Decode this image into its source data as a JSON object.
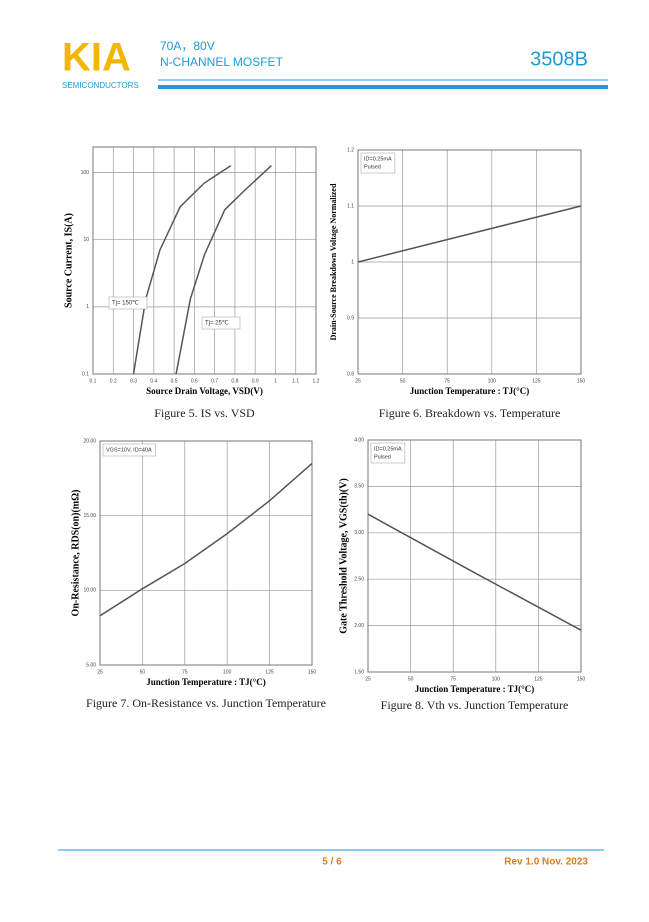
{
  "header": {
    "logo": "KIA",
    "company": "SEMICONDUCTORS",
    "rating": "70A，80V",
    "device_type": "N-CHANNEL MOSFET",
    "part": "3508B"
  },
  "footer": {
    "page": "5 / 6",
    "revision": "Rev 1.0   Nov. 2023"
  },
  "chart_data": [
    {
      "type": "line",
      "title": "Figure 5.    IS vs. VSD",
      "xlabel": "Source Drain Voltage, VSD(V)",
      "ylabel": "Source Current, IS(A)",
      "ylog": true,
      "grid": true,
      "xlim": [
        0.1,
        1.2
      ],
      "xticks": [
        0.1,
        0.2,
        0.3,
        0.4,
        0.5,
        0.6,
        0.7,
        0.8,
        0.9,
        1,
        1.1,
        1.2
      ],
      "ylim": [
        0.1,
        240
      ],
      "yticks": [
        0.1,
        1,
        10,
        100
      ],
      "series": [
        {
          "name": "Tj= 150℃",
          "color": "#555555",
          "x": [
            0.3,
            0.36,
            0.43,
            0.53,
            0.65,
            0.78
          ],
          "values": [
            0.1,
            1.3,
            7,
            31,
            70,
            127
          ]
        },
        {
          "name": "Tj= 25℃",
          "color": "#555555",
          "x": [
            0.51,
            0.58,
            0.65,
            0.75,
            0.85,
            0.98
          ],
          "values": [
            0.1,
            1.3,
            6,
            28,
            55,
            127
          ]
        }
      ]
    },
    {
      "type": "line",
      "title": "Figure 6. Breakdown vs. Temperature",
      "xlabel": "Junction Temperature : TJ(°C)",
      "ylabel": "Drain-Source Breakdown Voltage Normalized",
      "grid": true,
      "annotations": [
        "ID=0.25mA",
        "Pulsed"
      ],
      "xlim": [
        25,
        150
      ],
      "xticks": [
        25,
        50,
        75,
        100,
        125,
        150
      ],
      "ylim": [
        0.8,
        1.2
      ],
      "yticks": [
        0.8,
        0.9,
        1,
        1.1,
        1.2
      ],
      "series": [
        {
          "color": "#555555",
          "x": [
            25,
            150
          ],
          "values": [
            1.0,
            1.1
          ]
        }
      ]
    },
    {
      "type": "line",
      "title": "Figure 7. On-Resistance vs. Junction Temperature",
      "xlabel": "Junction Temperature : TJ(°C)",
      "ylabel": "On-Resistance, RDS(on)(mΩ)",
      "grid": true,
      "annotations": [
        "VGS=10V, ID=40A"
      ],
      "xlim": [
        25,
        150
      ],
      "xticks": [
        25,
        50,
        75,
        100,
        125,
        150
      ],
      "ylim": [
        5,
        20
      ],
      "yticks": [
        {
          "value": 5,
          "label": "5.00"
        },
        {
          "value": 10,
          "label": "10.00"
        },
        {
          "value": 15,
          "label": "15.00"
        },
        {
          "value": 20,
          "label": "20.00"
        }
      ],
      "series": [
        {
          "color": "#555555",
          "x": [
            25,
            50,
            75,
            100,
            125,
            150
          ],
          "values": [
            8.3,
            10.1,
            11.8,
            13.8,
            16,
            18.5
          ]
        }
      ]
    },
    {
      "type": "line",
      "title": "Figure 8. Vth vs. Junction Temperature",
      "xlabel": "Junction Temperature : TJ(°C)",
      "ylabel": "Gate Threshold Voltage, VGS(th)(V)",
      "grid": true,
      "annotations": [
        "ID=0.25mA",
        "Pulsed"
      ],
      "xlim": [
        25,
        150
      ],
      "xticks": [
        25,
        50,
        75,
        100,
        125,
        150
      ],
      "ylim": [
        1.5,
        4
      ],
      "yticks": [
        {
          "value": 1.5,
          "label": "1.50"
        },
        {
          "value": 2,
          "label": "2.00"
        },
        {
          "value": 2.5,
          "label": "2.50"
        },
        {
          "value": 3,
          "label": "3.00"
        },
        {
          "value": 3.5,
          "label": "3.50"
        },
        {
          "value": 4,
          "label": "4.00"
        }
      ],
      "series": [
        {
          "color": "#555555",
          "x": [
            25,
            87.5,
            150
          ],
          "values": [
            3.2,
            2.57,
            1.95
          ]
        }
      ]
    }
  ]
}
